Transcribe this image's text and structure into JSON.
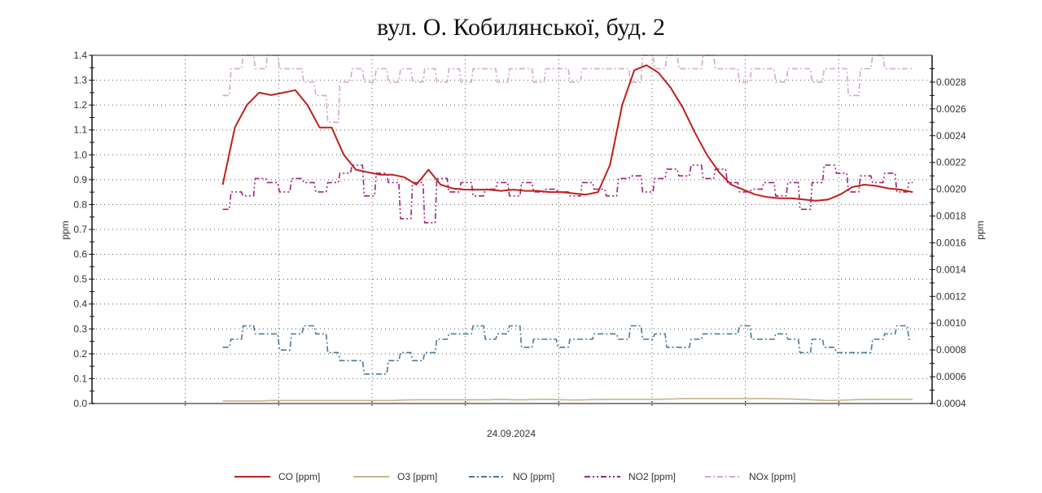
{
  "chart_data": {
    "type": "line",
    "title": "вул. О. Кобилянської, буд. 2",
    "xlabel": "24.09.2024",
    "ylabel_left": "ppm",
    "ylabel_right": "ppm",
    "ylim_left": [
      0.0,
      1.4
    ],
    "ylim_right": [
      0.0004,
      0.003
    ],
    "yticks_left": [
      "0.0",
      "0.1",
      "0.2",
      "0.3",
      "0.4",
      "0.5",
      "0.6",
      "0.7",
      "0.8",
      "0.9",
      "1.0",
      "1.1",
      "1.2",
      "1.3",
      "1.4"
    ],
    "yticks_right": [
      "0.0004",
      "0.0006",
      "0.0008",
      "0.0010",
      "0.0012",
      "0.0014",
      "0.0016",
      "0.0018",
      "0.0020",
      "0.0022",
      "0.0024",
      "0.0026",
      "0.0028"
    ],
    "yticks_left_values": [
      0.0,
      0.1,
      0.2,
      0.3,
      0.4,
      0.5,
      0.6,
      0.7,
      0.8,
      0.9,
      1.0,
      1.1,
      1.2,
      1.3,
      1.4
    ],
    "yticks_right_values": [
      0.0004,
      0.0006,
      0.0008,
      0.001,
      0.0012,
      0.0014,
      0.0016,
      0.0018,
      0.002,
      0.0022,
      0.0024,
      0.0026,
      0.0028
    ],
    "xlim": [
      -10.8,
      58.6
    ],
    "grid": true,
    "legend_position": "bottom",
    "series": [
      {
        "name": "CO [ppm]",
        "axis": "left",
        "color": "#c0201c",
        "dash": "solid",
        "values": [
          0.88,
          1.11,
          1.2,
          1.25,
          1.24,
          1.25,
          1.26,
          1.2,
          1.11,
          1.11,
          1.0,
          0.94,
          0.93,
          0.92,
          0.92,
          0.91,
          0.88,
          0.94,
          0.88,
          0.865,
          0.86,
          0.86,
          0.86,
          0.855,
          0.86,
          0.855,
          0.855,
          0.85,
          0.85,
          0.845,
          0.84,
          0.85,
          0.96,
          1.2,
          1.34,
          1.36,
          1.33,
          1.27,
          1.19,
          1.09,
          1.0,
          0.93,
          0.88,
          0.86,
          0.84,
          0.83,
          0.825,
          0.825,
          0.82,
          0.815,
          0.82,
          0.84,
          0.87,
          0.88,
          0.875,
          0.865,
          0.86,
          0.85
        ]
      },
      {
        "name": "O3 [ppm]",
        "axis": "left",
        "color": "#c8b48c",
        "dash": "solid",
        "values": [
          0.01,
          0.01,
          0.01,
          0.01,
          0.012,
          0.012,
          0.012,
          0.012,
          0.012,
          0.012,
          0.012,
          0.012,
          0.012,
          0.012,
          0.012,
          0.014,
          0.015,
          0.015,
          0.015,
          0.015,
          0.015,
          0.015,
          0.015,
          0.017,
          0.015,
          0.015,
          0.017,
          0.017,
          0.015,
          0.014,
          0.015,
          0.016,
          0.017,
          0.017,
          0.017,
          0.017,
          0.017,
          0.018,
          0.02,
          0.02,
          0.02,
          0.02,
          0.02,
          0.02,
          0.02,
          0.02,
          0.019,
          0.018,
          0.016,
          0.014,
          0.012,
          0.013,
          0.015,
          0.016,
          0.017,
          0.017,
          0.017,
          0.017
        ]
      },
      {
        "name": "NO [ppm]",
        "axis": "right",
        "color": "#4a7a96",
        "dash": "dashdot",
        "values": [
          0.00082,
          0.00088,
          0.00098,
          0.00092,
          0.00092,
          0.0008,
          0.00092,
          0.00098,
          0.00092,
          0.00078,
          0.00072,
          0.00072,
          0.00062,
          0.00062,
          0.00072,
          0.00078,
          0.00072,
          0.00078,
          0.00088,
          0.00092,
          0.00092,
          0.00098,
          0.00088,
          0.00092,
          0.00098,
          0.00082,
          0.00088,
          0.00088,
          0.00082,
          0.00088,
          0.00088,
          0.00092,
          0.00092,
          0.00088,
          0.00098,
          0.00088,
          0.00092,
          0.00082,
          0.00082,
          0.00088,
          0.00092,
          0.00092,
          0.00092,
          0.00098,
          0.00088,
          0.00088,
          0.00092,
          0.00088,
          0.00078,
          0.00088,
          0.00082,
          0.00078,
          0.00078,
          0.00078,
          0.00088,
          0.00092,
          0.00098,
          0.00088
        ]
      },
      {
        "name": "NO2 [ppm]",
        "axis": "right",
        "color": "#a0207f",
        "dash": "dashdotdot",
        "values": [
          0.00185,
          0.00198,
          0.00195,
          0.00208,
          0.00205,
          0.00198,
          0.00208,
          0.00205,
          0.00198,
          0.00205,
          0.00212,
          0.00218,
          0.00195,
          0.00212,
          0.00205,
          0.00178,
          0.00205,
          0.00175,
          0.00208,
          0.00198,
          0.00205,
          0.00195,
          0.002,
          0.00205,
          0.00195,
          0.00205,
          0.00198,
          0.002,
          0.00198,
          0.00195,
          0.00205,
          0.002,
          0.00195,
          0.00208,
          0.0021,
          0.00198,
          0.00208,
          0.00215,
          0.0021,
          0.00218,
          0.00208,
          0.00215,
          0.00205,
          0.00198,
          0.002,
          0.00205,
          0.00195,
          0.00205,
          0.00185,
          0.00205,
          0.00218,
          0.00212,
          0.00198,
          0.0021,
          0.00205,
          0.00212,
          0.00198,
          0.00205
        ]
      },
      {
        "name": "NOx [ppm]",
        "axis": "right",
        "color": "#d6a6d0",
        "dash": "dashdot",
        "values": [
          0.0027,
          0.0029,
          0.003,
          0.0029,
          0.003,
          0.0029,
          0.0029,
          0.0028,
          0.0027,
          0.0025,
          0.0028,
          0.0029,
          0.0028,
          0.0029,
          0.0028,
          0.0029,
          0.0028,
          0.0029,
          0.0028,
          0.0029,
          0.0028,
          0.0029,
          0.0029,
          0.0028,
          0.0029,
          0.0029,
          0.0028,
          0.0029,
          0.0029,
          0.0028,
          0.0029,
          0.0029,
          0.0029,
          0.0029,
          0.0028,
          0.003,
          0.0029,
          0.003,
          0.0029,
          0.0029,
          0.003,
          0.0029,
          0.0029,
          0.0028,
          0.0029,
          0.0029,
          0.0028,
          0.0029,
          0.0029,
          0.0028,
          0.0029,
          0.0029,
          0.0027,
          0.0029,
          0.003,
          0.0029,
          0.0029,
          0.0029
        ]
      }
    ]
  }
}
